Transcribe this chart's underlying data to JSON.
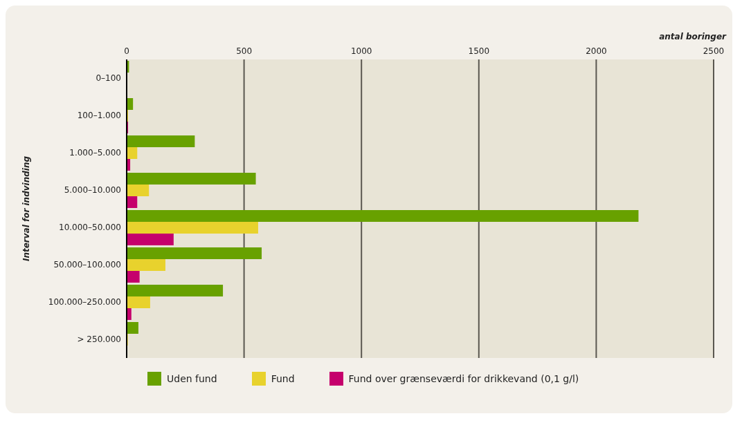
{
  "chart_data": {
    "type": "bar",
    "orientation": "horizontal",
    "xlabel": "antal boringer",
    "ylabel": "Interval for indvinding",
    "categories": [
      "0–100",
      "100–1.000",
      "1.000–5.000",
      "5.000–10.000",
      "10.000–50.000",
      "50.000–100.000",
      "100.000–250.000",
      "> 250.000"
    ],
    "series": [
      {
        "name": "Uden fund",
        "color": "#68a100",
        "values": [
          10,
          27,
          290,
          550,
          2180,
          575,
          410,
          50
        ]
      },
      {
        "name": "Fund",
        "color": "#e8d22d",
        "values": [
          null,
          6,
          45,
          95,
          560,
          165,
          100,
          5
        ]
      },
      {
        "name": "Fund over grænseværdi for drikkevand (0,1 g/l)",
        "color": "#c5006c",
        "values": [
          null,
          6,
          15,
          45,
          200,
          55,
          20,
          null
        ]
      }
    ],
    "xlim": [
      0,
      2500
    ],
    "xticks": [
      0,
      500,
      1000,
      1500,
      2000,
      2500
    ],
    "grid": "x",
    "legend": "bottom"
  }
}
